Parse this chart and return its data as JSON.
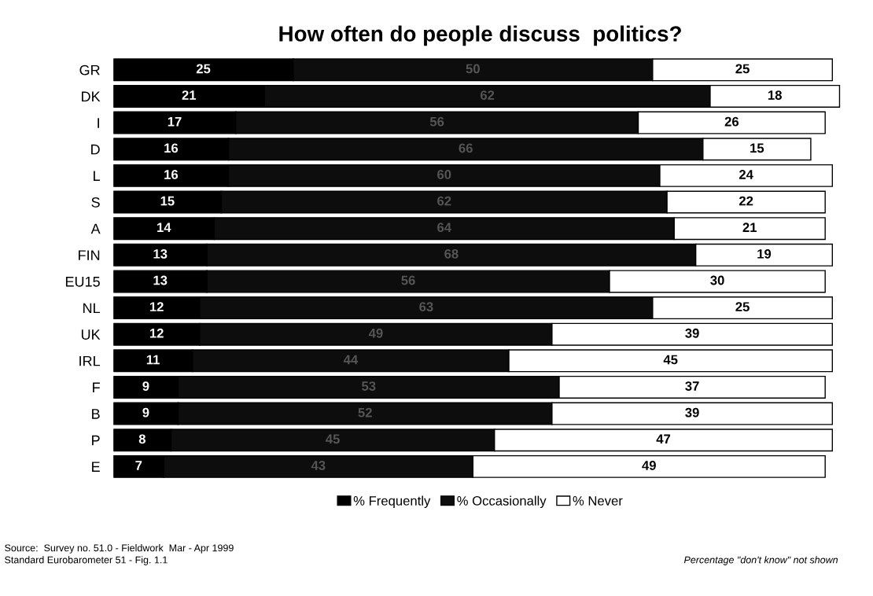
{
  "chart_data": {
    "type": "bar",
    "orientation": "horizontal",
    "stacked": true,
    "title": "How often do people discuss  politics?",
    "categories": [
      "GR",
      "DK",
      "I",
      "D",
      "L",
      "S",
      "A",
      "FIN",
      "EU15",
      "NL",
      "UK",
      "IRL",
      "F",
      "B",
      "P",
      "E"
    ],
    "series": [
      {
        "name": "% Frequently",
        "color": "#000000",
        "values": [
          25,
          21,
          17,
          16,
          16,
          15,
          14,
          13,
          13,
          12,
          12,
          11,
          9,
          9,
          8,
          7
        ]
      },
      {
        "name": "% Occasionally",
        "color": "#0d0d0d",
        "values": [
          50,
          62,
          56,
          66,
          60,
          62,
          64,
          68,
          56,
          63,
          49,
          44,
          53,
          52,
          45,
          43
        ]
      },
      {
        "name": "% Never",
        "color": "#ffffff",
        "values": [
          25,
          18,
          26,
          15,
          24,
          22,
          21,
          19,
          30,
          25,
          39,
          45,
          37,
          39,
          47,
          49
        ]
      }
    ],
    "tick_labels": "y",
    "data_labels": true,
    "legend": "bottom",
    "grid": false,
    "annotations": [
      "Source:  Survey no. 51.0 - Fieldwork  Mar - Apr 1999",
      "Standard Eurobarometer 51 - Fig. 1.1",
      "Percentage \"don't know\" not shown"
    ]
  }
}
